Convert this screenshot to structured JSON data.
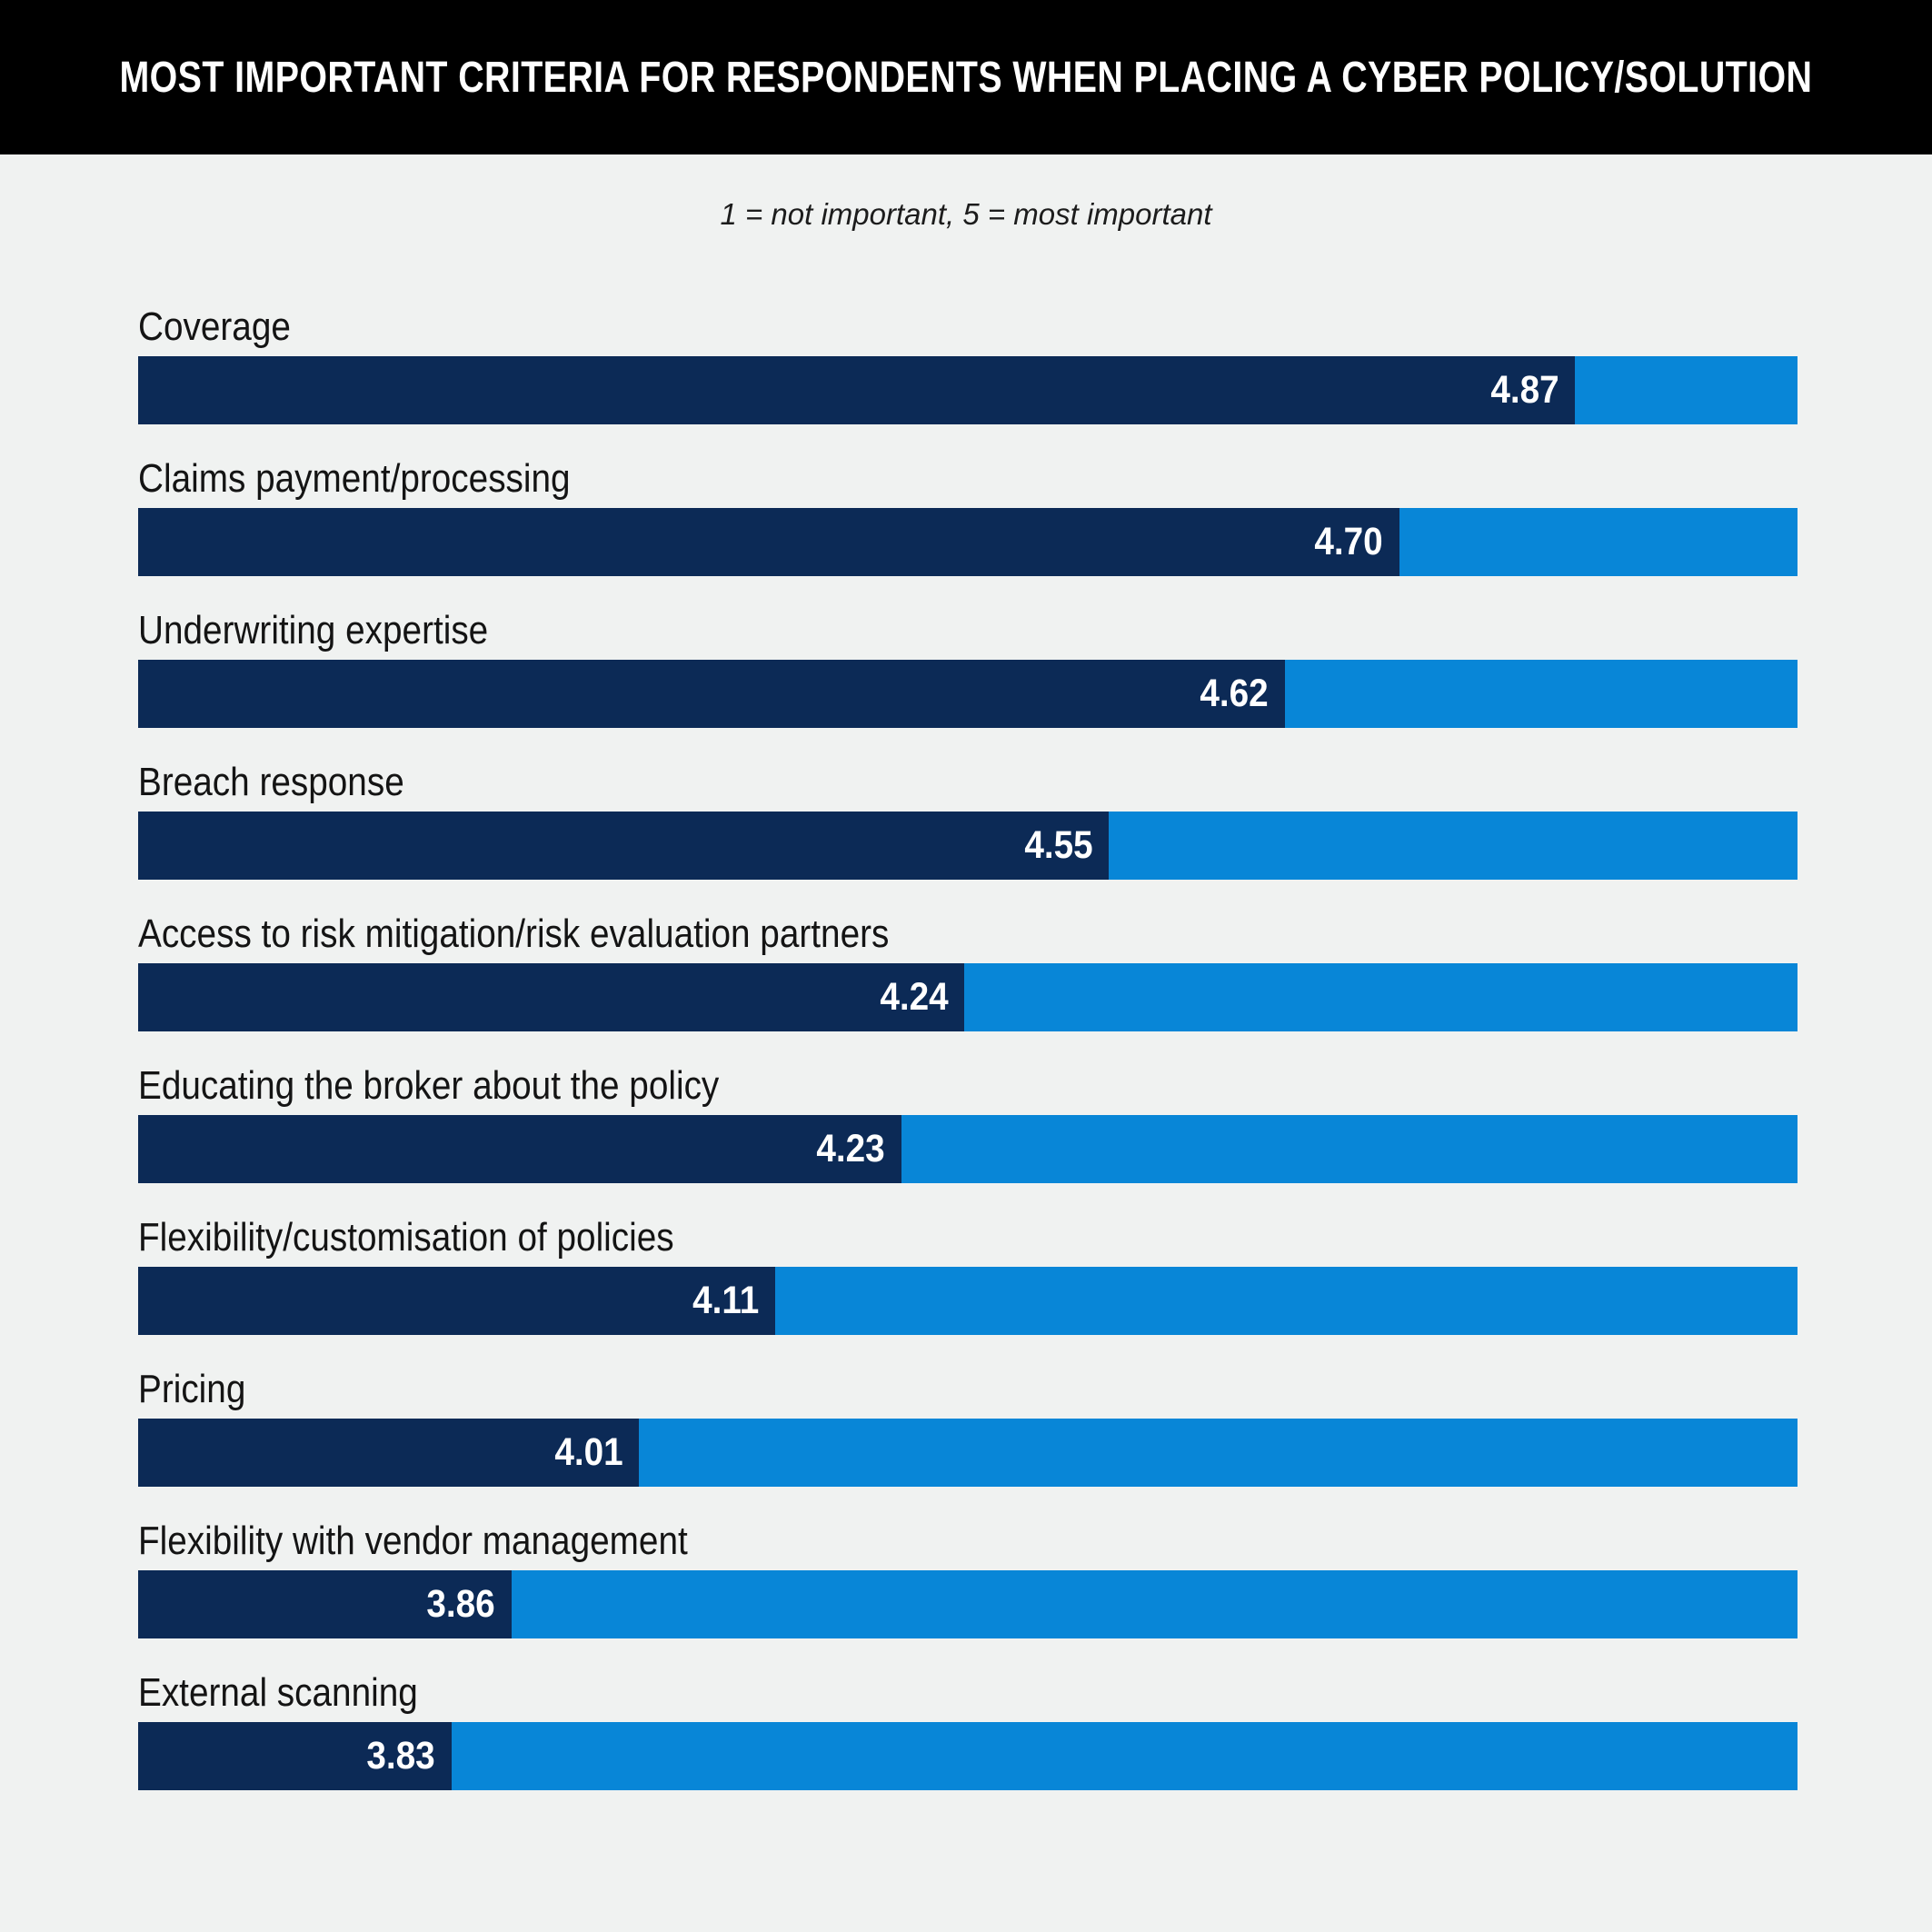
{
  "header": {
    "title": "MOST IMPORTANT CRITERIA FOR RESPONDENTS WHEN PLACING A CYBER POLICY/SOLUTION"
  },
  "subtitle": "1 = not important, 5 = most important",
  "colors": {
    "header_bg": "#000000",
    "title_text": "#ffffff",
    "page_bg": "#f0f2f1",
    "bar_fill": "#0c2a56",
    "bar_track": "#0886d7",
    "value_text": "#ffffff",
    "label_text": "#141414"
  },
  "chart_data": {
    "type": "bar",
    "orientation": "horizontal",
    "title": "MOST IMPORTANT CRITERIA FOR RESPONDENTS WHEN PLACING A CYBER POLICY/SOLUTION",
    "subtitle": "1 = not important, 5 = most important",
    "xlim": [
      0,
      5
    ],
    "grid": false,
    "legend": false,
    "categories": [
      "Coverage",
      "Claims payment/processing",
      "Underwriting expertise",
      "Breach response",
      "Access to risk mitigation/risk evaluation partners",
      "Educating the broker about the policy",
      "Flexibility/customisation of policies",
      "Pricing",
      "Flexibility with vendor management",
      "External scanning"
    ],
    "values": [
      4.87,
      4.7,
      4.62,
      4.55,
      4.24,
      4.23,
      4.11,
      4.01,
      3.86,
      3.83
    ],
    "items": [
      {
        "label": "Coverage",
        "value": 4.87,
        "value_label": "4.87",
        "fill_pct": 86.6
      },
      {
        "label": "Claims payment/processing",
        "value": 4.7,
        "value_label": "4.70",
        "fill_pct": 76.0
      },
      {
        "label": "Underwriting expertise",
        "value": 4.62,
        "value_label": "4.62",
        "fill_pct": 69.1
      },
      {
        "label": "Breach response",
        "value": 4.55,
        "value_label": "4.55",
        "fill_pct": 58.5
      },
      {
        "label": "Access to risk mitigation/risk evaluation partners",
        "value": 4.24,
        "value_label": "4.24",
        "fill_pct": 49.8
      },
      {
        "label": "Educating the broker about the policy",
        "value": 4.23,
        "value_label": "4.23",
        "fill_pct": 46.0
      },
      {
        "label": "Flexibility/customisation of policies",
        "value": 4.11,
        "value_label": "4.11",
        "fill_pct": 38.4
      },
      {
        "label": "Pricing",
        "value": 4.01,
        "value_label": "4.01",
        "fill_pct": 30.2
      },
      {
        "label": "Flexibility with vendor management",
        "value": 3.86,
        "value_label": "3.86",
        "fill_pct": 22.5
      },
      {
        "label": "External scanning",
        "value": 3.83,
        "value_label": "3.83",
        "fill_pct": 18.9
      }
    ]
  }
}
